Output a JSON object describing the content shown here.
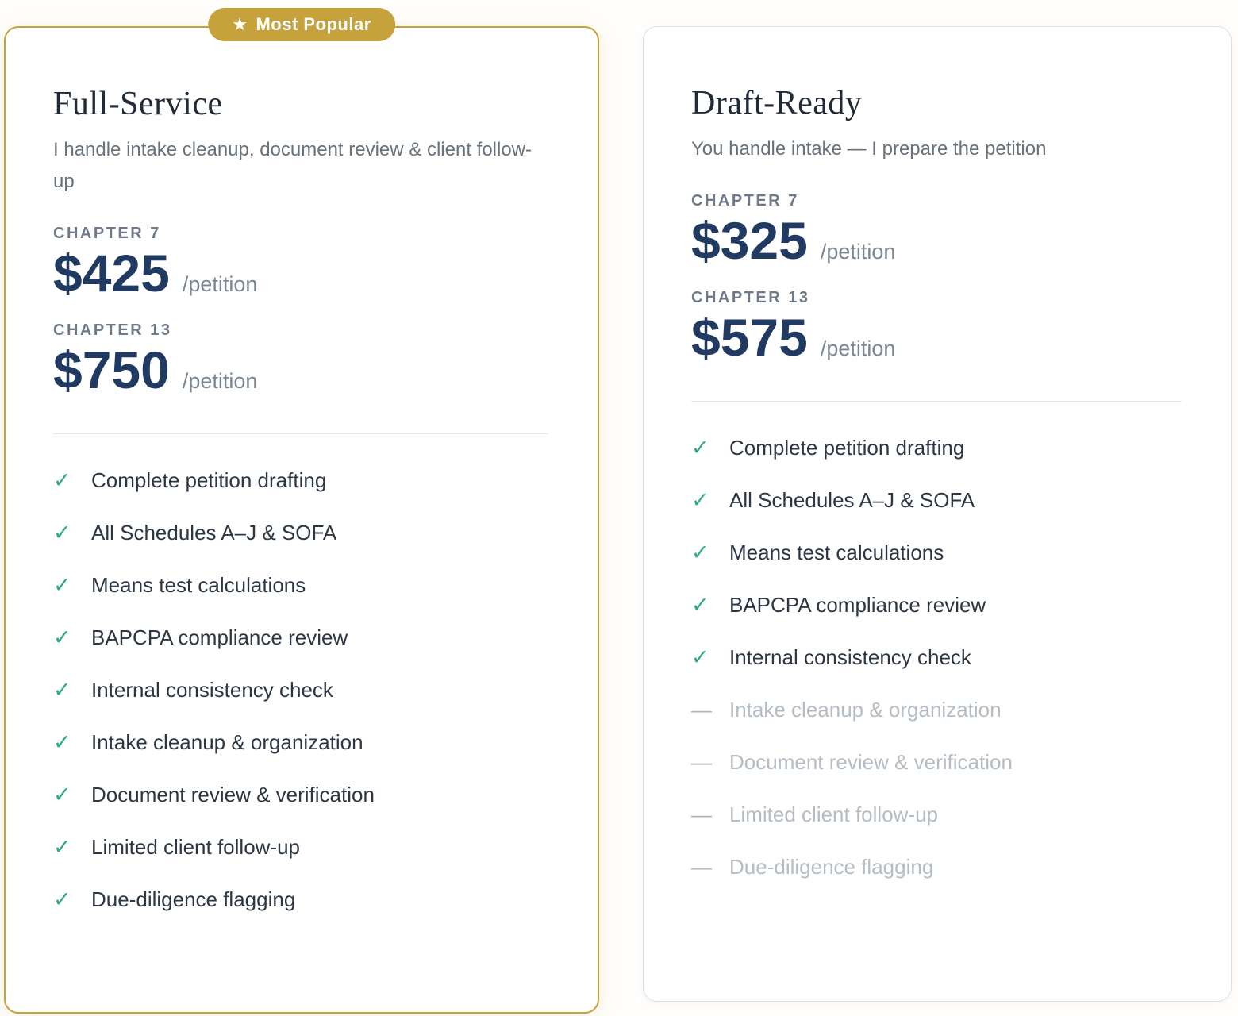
{
  "icons": {
    "check": "✓",
    "dash": "—",
    "star": "★"
  },
  "colors": {
    "gold": "#c6a23c",
    "navy": "#203a61",
    "green_check": "#2cae78",
    "muted_gray": "#b4bcc4",
    "card_border_gray": "#dbe1e7"
  },
  "badge": {
    "star": "★",
    "label": "Most Popular"
  },
  "plans": [
    {
      "name": "Full-Service",
      "subtitle": "I handle intake cleanup, document review & client follow-up",
      "popular": true,
      "prices": [
        {
          "label": "CHAPTER 7",
          "amount": "$425",
          "unit": "/petition"
        },
        {
          "label": "CHAPTER 13",
          "amount": "$750",
          "unit": "/petition"
        }
      ],
      "features": [
        {
          "text": "Complete petition drafting",
          "included": true
        },
        {
          "text": "All Schedules A–J & SOFA",
          "included": true
        },
        {
          "text": "Means test calculations",
          "included": true
        },
        {
          "text": "BAPCPA compliance review",
          "included": true
        },
        {
          "text": "Internal consistency check",
          "included": true
        },
        {
          "text": "Intake cleanup & organization",
          "included": true
        },
        {
          "text": "Document review & verification",
          "included": true
        },
        {
          "text": "Limited client follow-up",
          "included": true
        },
        {
          "text": "Due-diligence flagging",
          "included": true
        }
      ]
    },
    {
      "name": "Draft-Ready",
      "subtitle": "You handle intake — I prepare the petition",
      "popular": false,
      "prices": [
        {
          "label": "CHAPTER 7",
          "amount": "$325",
          "unit": "/petition"
        },
        {
          "label": "CHAPTER 13",
          "amount": "$575",
          "unit": "/petition"
        }
      ],
      "features": [
        {
          "text": "Complete petition drafting",
          "included": true
        },
        {
          "text": "All Schedules A–J & SOFA",
          "included": true
        },
        {
          "text": "Means test calculations",
          "included": true
        },
        {
          "text": "BAPCPA compliance review",
          "included": true
        },
        {
          "text": "Internal consistency check",
          "included": true
        },
        {
          "text": "Intake cleanup & organization",
          "included": false
        },
        {
          "text": "Document review & verification",
          "included": false
        },
        {
          "text": "Limited client follow-up",
          "included": false
        },
        {
          "text": "Due-diligence flagging",
          "included": false
        }
      ]
    }
  ]
}
